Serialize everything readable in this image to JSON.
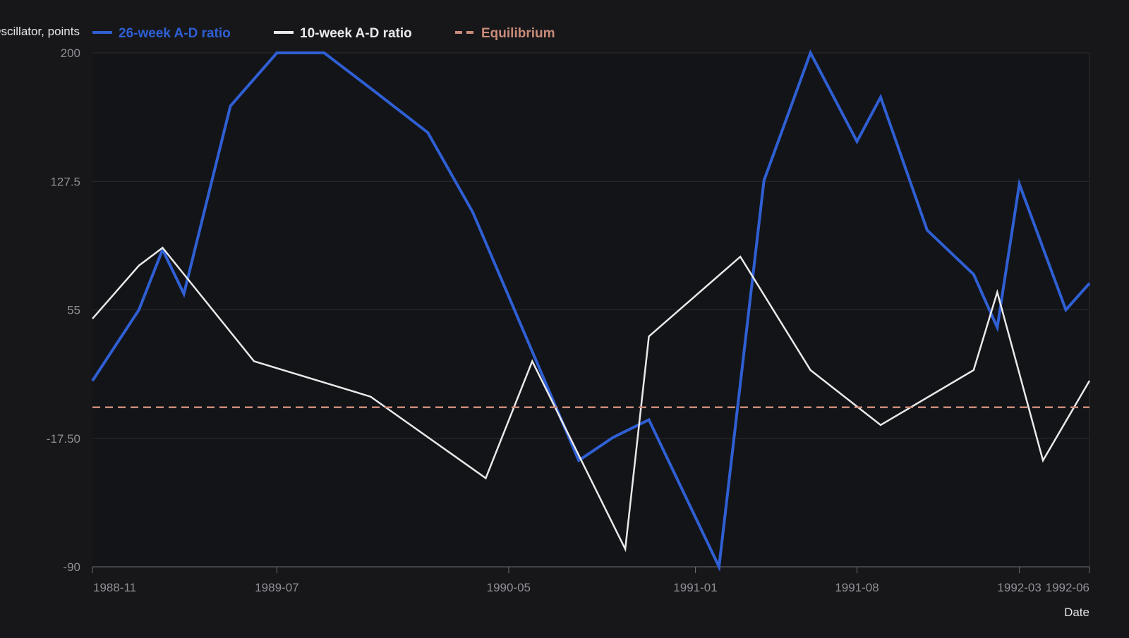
{
  "chart_data": {
    "type": "line",
    "ylabel": "Oscillator, points",
    "xlabel": "Date",
    "x_ticks": [
      "1988-11",
      "1989-07",
      "1990-05",
      "1991-01",
      "1991-08",
      "1992-03",
      "1992-06"
    ],
    "y_ticks": [
      "200",
      "127.5",
      "55",
      "-17.50",
      "-90"
    ],
    "ylim": [
      -90,
      200
    ],
    "xlim": [
      "1988-11-01",
      "1992-06-01"
    ],
    "grid": "horizontal",
    "legend_position": "top",
    "colors": {
      "background": "#17171a",
      "plot_background": "#131418",
      "grid": "#2a2c32",
      "series_26": "#2f5fd3",
      "series_10": "#e9e9e9",
      "equilibrium": "#c98b7a"
    },
    "series": [
      {
        "name": "26-week A-D ratio",
        "color": "#2f5fd3",
        "points": [
          [
            "1988-11-01",
            15
          ],
          [
            "1989-01-01",
            55
          ],
          [
            "1989-02-01",
            89
          ],
          [
            "1989-03-01",
            64
          ],
          [
            "1989-05-01",
            170
          ],
          [
            "1989-07-01",
            200
          ],
          [
            "1989-09-01",
            200
          ],
          [
            "1989-11-01",
            180
          ],
          [
            "1990-01-15",
            155
          ],
          [
            "1990-03-15",
            110
          ],
          [
            "1990-08-01",
            -30
          ],
          [
            "1990-09-15",
            -17
          ],
          [
            "1990-11-01",
            -7
          ],
          [
            "1991-01-01",
            -62
          ],
          [
            "1991-02-01",
            -90
          ],
          [
            "1991-04-01",
            128
          ],
          [
            "1991-06-01",
            200
          ],
          [
            "1991-08-01",
            150
          ],
          [
            "1991-09-01",
            175
          ],
          [
            "1991-11-01",
            100
          ],
          [
            "1992-01-01",
            75
          ],
          [
            "1992-02-01",
            45
          ],
          [
            "1992-03-01",
            126
          ],
          [
            "1992-05-01",
            55
          ],
          [
            "1992-06-01",
            70
          ]
        ]
      },
      {
        "name": "10-week A-D ratio",
        "color": "#e9e9e9",
        "points": [
          [
            "1988-11-01",
            50
          ],
          [
            "1989-01-01",
            80
          ],
          [
            "1989-02-01",
            90
          ],
          [
            "1989-06-01",
            26
          ],
          [
            "1989-11-01",
            6
          ],
          [
            "1990-04-01",
            -40
          ],
          [
            "1990-06-01",
            26
          ],
          [
            "1990-10-01",
            -80
          ],
          [
            "1990-11-01",
            40
          ],
          [
            "1991-03-01",
            85
          ],
          [
            "1991-06-01",
            21
          ],
          [
            "1991-09-01",
            -10
          ],
          [
            "1992-01-01",
            21
          ],
          [
            "1992-02-01",
            65
          ],
          [
            "1992-04-01",
            -30
          ],
          [
            "1992-06-01",
            15
          ]
        ]
      },
      {
        "name": "Equilibrium",
        "color": "#c98b7a",
        "dashed": true,
        "points": [
          [
            "1988-11-01",
            0
          ],
          [
            "1992-06-01",
            0
          ]
        ]
      }
    ]
  }
}
